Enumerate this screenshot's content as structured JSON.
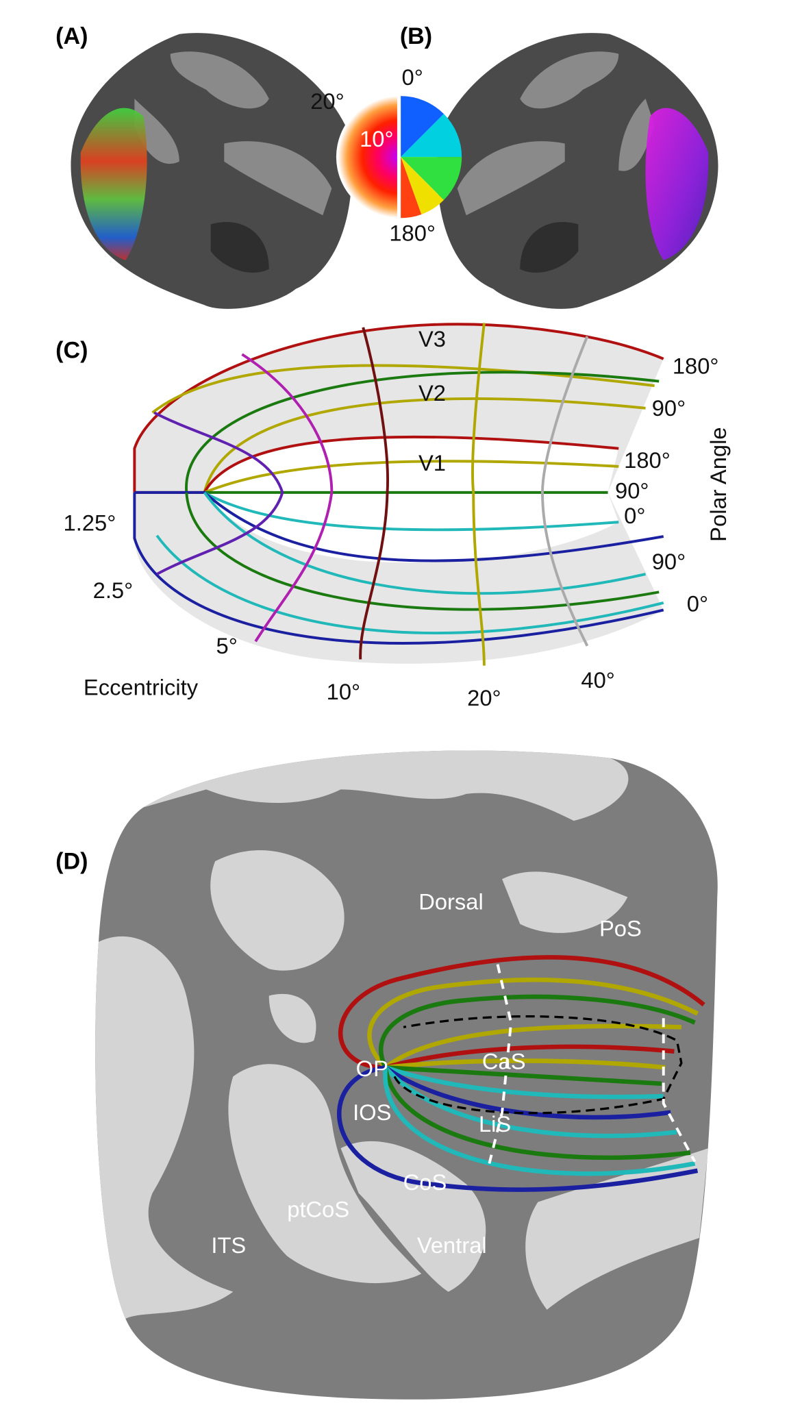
{
  "panel_labels": [
    "(A)",
    "(B)",
    "(C)",
    "(D)"
  ],
  "color_key": {
    "eccentricity": [
      "20°",
      "10°"
    ],
    "polar_angle": [
      "0°",
      "180°"
    ]
  },
  "panel_c": {
    "areas": [
      "V3",
      "V2",
      "V1"
    ],
    "polar_angle_labels": [
      "180°",
      "90°",
      "180°",
      "90°",
      "0°",
      "90°",
      "0°"
    ],
    "polar_angle_title": "Polar Angle",
    "eccentricity_labels": [
      "1.25°",
      "2.5°",
      "5°",
      "10°",
      "20°",
      "40°"
    ],
    "eccentricity_title": "Eccentricity"
  },
  "panel_d": {
    "labels": [
      "Dorsal",
      "PoS",
      "OP",
      "CaS",
      "IOS",
      "LiS",
      "CoS",
      "ptCoS",
      "ITS",
      "Ventral"
    ]
  }
}
